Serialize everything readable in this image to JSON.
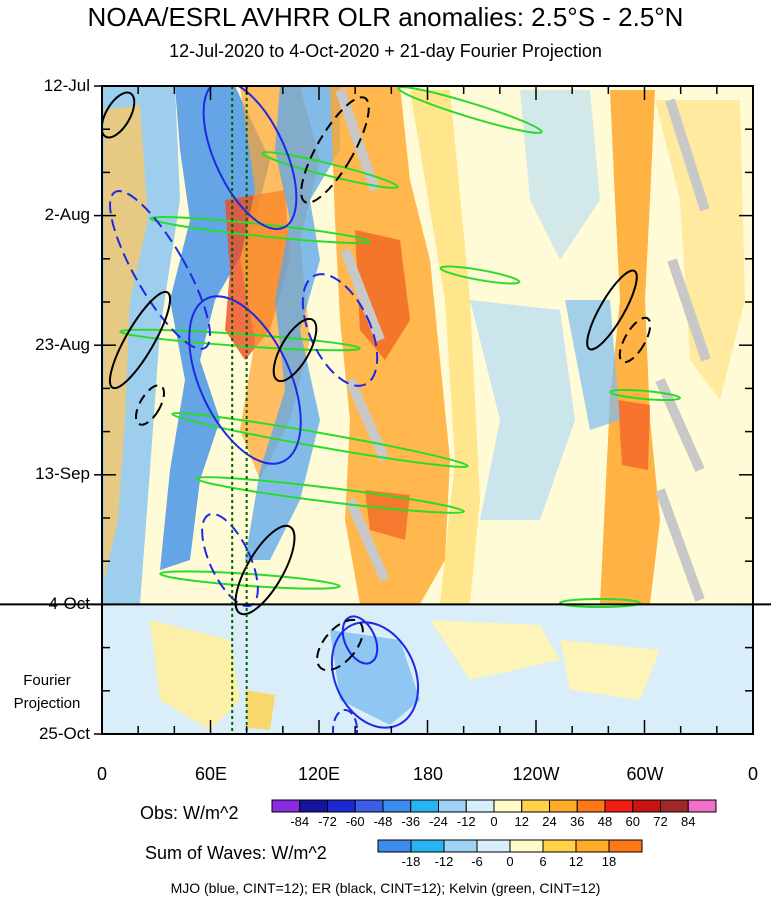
{
  "title": "NOAA/ESRL AVHRR OLR anomalies: 2.5°S - 2.5°N",
  "subtitle": "12-Jul-2020 to 4-Oct-2020 + 21-day Fourier Projection",
  "projection_label_line1": "Fourier",
  "projection_label_line2": "Projection",
  "footer": "MJO (blue, CINT=12); ER (black, CINT=12); Kelvin (green, CINT=12)",
  "colorbar_obs": {
    "label": "Obs: W/m^2",
    "ticks": [
      "-84",
      "-72",
      "-60",
      "-48",
      "-36",
      "-24",
      "-12",
      "0",
      "12",
      "24",
      "36",
      "48",
      "60",
      "72",
      "84"
    ],
    "colors": [
      "#8a2be2",
      "#1414a0",
      "#1c28d0",
      "#3a5ee8",
      "#3c8cf0",
      "#28b4f0",
      "#a0d2f5",
      "#d8eefa",
      "#fffac8",
      "#ffd24a",
      "#ffaa28",
      "#ff7818",
      "#f01e14",
      "#c81414",
      "#a02828",
      "#f070c8"
    ]
  },
  "colorbar_sow": {
    "label": "Sum of Waves: W/m^2",
    "ticks": [
      "-18",
      "-12",
      "-6",
      "0",
      "6",
      "12",
      "18"
    ],
    "colors": [
      "#3c8cf0",
      "#28b4f0",
      "#a0d2f5",
      "#d8eefa",
      "#fffac8",
      "#ffd24a",
      "#ffaa28",
      "#ff7818"
    ]
  },
  "chart_data": {
    "type": "heatmap",
    "title": "NOAA/ESRL AVHRR OLR anomalies: 2.5°S - 2.5°N",
    "subtitle": "12-Jul-2020 to 4-Oct-2020 + 21-day Fourier Projection",
    "x_axis": {
      "quantity": "longitude",
      "range_deg_east": [
        0,
        360
      ],
      "tick_values_deg_east": [
        0,
        60,
        120,
        180,
        240,
        300,
        360
      ],
      "tick_labels": [
        "0",
        "60E",
        "120E",
        "180",
        "120W",
        "60W",
        "0"
      ]
    },
    "y_axis": {
      "quantity": "date",
      "direction": "downward",
      "range": [
        "2020-07-12",
        "2020-10-25"
      ],
      "tick_labels": [
        "12-Jul",
        "2-Aug",
        "23-Aug",
        "13-Sep",
        "4-Oct",
        "25-Oct"
      ],
      "tick_dates": [
        "2020-07-12",
        "2020-08-02",
        "2020-08-23",
        "2020-09-13",
        "2020-10-04",
        "2020-10-25"
      ]
    },
    "observation_end": "2020-10-04",
    "projection_end": "2020-10-25",
    "colorbars": [
      {
        "name": "Obs",
        "units": "W/m^2",
        "levels": [
          -84,
          -72,
          -60,
          -48,
          -36,
          -24,
          -12,
          0,
          12,
          24,
          36,
          48,
          60,
          72,
          84
        ]
      },
      {
        "name": "Sum of Waves",
        "units": "W/m^2",
        "levels": [
          -18,
          -12,
          -6,
          0,
          6,
          12,
          18
        ]
      }
    ],
    "contours": [
      {
        "name": "MJO",
        "color": "blue",
        "cint": 12
      },
      {
        "name": "ER",
        "color": "black",
        "cint": 12
      },
      {
        "name": "Kelvin",
        "color": "green",
        "cint": 12
      }
    ],
    "reference_lines_deg_east": [
      72,
      80
    ],
    "grid": false
  }
}
